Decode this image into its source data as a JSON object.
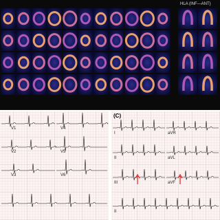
{
  "header": {
    "title": "HLA (INF—ANT)"
  },
  "panel_c": {
    "label": "(C)"
  },
  "left_leads": [
    "V1",
    "V4",
    "V2",
    "V5",
    "V3",
    "V6"
  ],
  "right_leads": [
    "I",
    "aVR",
    "II",
    "aVL",
    "III",
    "aVF",
    "II"
  ]
}
